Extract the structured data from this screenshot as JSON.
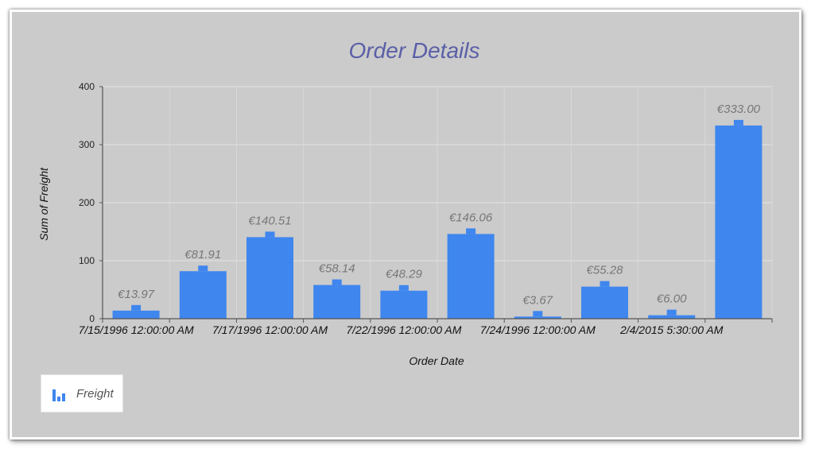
{
  "chart_data": {
    "type": "bar",
    "title": "Order Details",
    "xlabel": "Order Date",
    "ylabel": "Sum of Freight",
    "ylim": [
      0,
      400
    ],
    "yticks": [
      0,
      100,
      200,
      300,
      400
    ],
    "grid": true,
    "legend_position": "bottom-left",
    "x_tick_labels": [
      "7/15/1996 12:00:00 AM",
      "7/17/1996 12:00:00 AM",
      "7/22/1996 12:00:00 AM",
      "7/24/1996 12:00:00 AM",
      "2/4/2015 5:30:00 AM"
    ],
    "series": [
      {
        "name": "Freight",
        "color": "#3f86ee",
        "values": [
          13.97,
          81.91,
          140.51,
          58.14,
          48.29,
          146.06,
          3.67,
          55.28,
          6.0,
          333.0
        ],
        "data_labels": [
          "€13.97",
          "€81.91",
          "€140.51",
          "€58.14",
          "€48.29",
          "€146.06",
          "€3.67",
          "€55.28",
          "€6.00",
          "€333.00"
        ]
      }
    ]
  },
  "legend": {
    "label": "Freight",
    "icon": "bar-chart-icon"
  }
}
